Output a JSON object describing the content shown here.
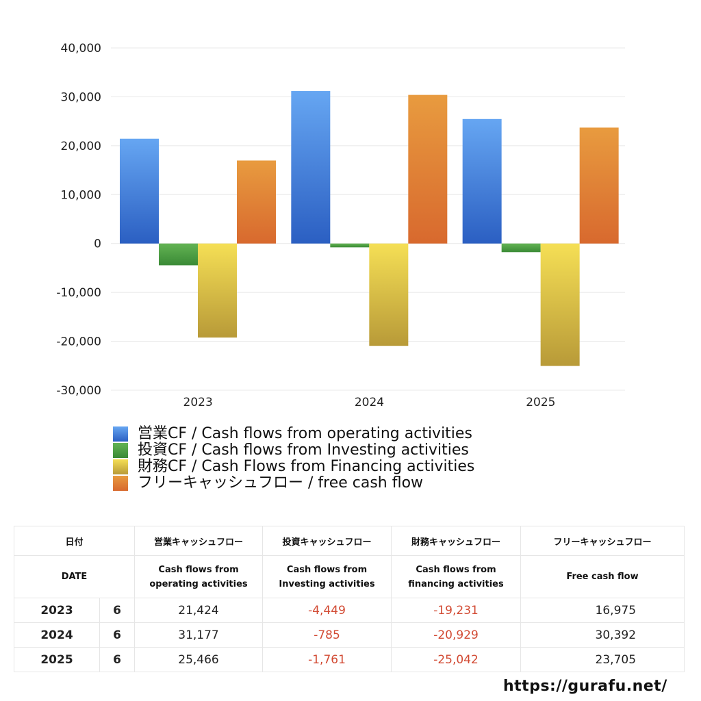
{
  "chart_data": {
    "type": "bar",
    "categories": [
      "2023",
      "2024",
      "2025"
    ],
    "ylim": [
      -30000,
      40000
    ],
    "yticks": [
      40000,
      30000,
      20000,
      10000,
      0,
      -10000,
      -20000,
      -30000
    ],
    "ytick_labels": [
      "40,000",
      "30,000",
      "20,000",
      "10,000",
      "0",
      "-10,000",
      "-20,000",
      "-30,000"
    ],
    "grid": true,
    "legend_position": "bottom-left",
    "series": [
      {
        "name": "営業CF / Cash flows from operating activities",
        "values": [
          21424,
          31177,
          25466
        ],
        "color_top": "#66a6f2",
        "color_bottom": "#2b5fc2"
      },
      {
        "name": "投資CF / Cash flows from Investing activities",
        "values": [
          -4449,
          -785,
          -1761
        ],
        "color_top": "#63b354",
        "color_bottom": "#3a8a35"
      },
      {
        "name": "財務CF / Cash Flows from Financing activities",
        "values": [
          -19231,
          -20929,
          -25042
        ],
        "color_top": "#f5df55",
        "color_bottom": "#b89a38"
      },
      {
        "name": "フリーキャッシュフロー / free cash flow",
        "values": [
          16975,
          30392,
          23705
        ],
        "color_top": "#e89b3f",
        "color_bottom": "#d8692e"
      }
    ]
  },
  "table": {
    "header_jp": {
      "date": "日付",
      "op": "営業キャッシュフロー",
      "inv": "投資キャッシュフロー",
      "fin": "財務キャッシュフロー",
      "free": "フリーキャッシュフロー"
    },
    "header_en": {
      "date": "DATE",
      "op_1": "Cash flows from",
      "op_2": "operating activities",
      "inv_1": "Cash flows from",
      "inv_2": "Investing activities",
      "fin_1": "Cash flows from",
      "fin_2": "financing activities",
      "free": "Free cash flow"
    },
    "rows": [
      {
        "year": "2023",
        "month": "6",
        "op": "21,424",
        "inv": "-4,449",
        "fin": "-19,231",
        "free": "16,975"
      },
      {
        "year": "2024",
        "month": "6",
        "op": "31,177",
        "inv": "-785",
        "fin": "-20,929",
        "free": "30,392"
      },
      {
        "year": "2025",
        "month": "6",
        "op": "25,466",
        "inv": "-1,761",
        "fin": "-25,042",
        "free": "23,705"
      }
    ]
  },
  "footer": {
    "url": "https://gurafu.net/"
  }
}
